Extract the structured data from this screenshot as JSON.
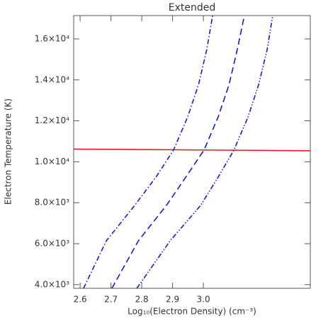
{
  "chart_data": {
    "type": "line",
    "title": "Extended",
    "x_label": "Log₁₀(Electron Density) (cm⁻³)",
    "y_label": "Electron Temperature (K)",
    "xlim": [
      2.579,
      3.347
    ],
    "ylim": [
      3820,
      17140
    ],
    "xticks": [
      2.6,
      2.7,
      2.8,
      2.9,
      {
        "value": 3.0,
        "label": "3.0"
      }
    ],
    "yticks": [
      {
        "value": 4000,
        "label": "4.0×10³"
      },
      {
        "value": 6000,
        "label": "6.0×10³"
      },
      {
        "value": 8000,
        "label": "8.0×10³"
      },
      {
        "value": 10000,
        "label": "1.0×10⁴"
      },
      {
        "value": 12000,
        "label": "1.2×10⁴"
      },
      {
        "value": 14000,
        "label": "1.4×10⁴"
      },
      {
        "value": 16000,
        "label": "1.6×10⁴"
      }
    ],
    "series": [
      {
        "color": "#e8141e",
        "style": "solid",
        "x": [
          2.579,
          3.347
        ],
        "values": [
          10620,
          10540
        ]
      },
      {
        "color": "#1a1acc",
        "style": "dash-dot",
        "x": [
          2.611,
          2.685,
          2.777,
          2.846,
          2.903,
          2.949,
          2.984,
          3.011,
          3.03
        ],
        "values": [
          3820,
          6140,
          7870,
          9250,
          10570,
          12190,
          13750,
          15480,
          17140
        ]
      },
      {
        "color": "#1a1acc",
        "style": "dash",
        "x": [
          2.703,
          2.789,
          2.88,
          2.943,
          3.002,
          3.048,
          3.083,
          3.11,
          3.133
        ],
        "values": [
          3820,
          6140,
          7870,
          9250,
          10570,
          12190,
          13750,
          15480,
          17140
        ]
      },
      {
        "color": "#1a1acc",
        "style": "dash-dot-dot",
        "x": [
          2.784,
          2.892,
          2.991,
          3.048,
          3.099,
          3.145,
          3.179,
          3.207,
          3.225
        ],
        "values": [
          3820,
          6140,
          7870,
          9250,
          10570,
          12190,
          13750,
          15480,
          17140
        ]
      }
    ]
  }
}
